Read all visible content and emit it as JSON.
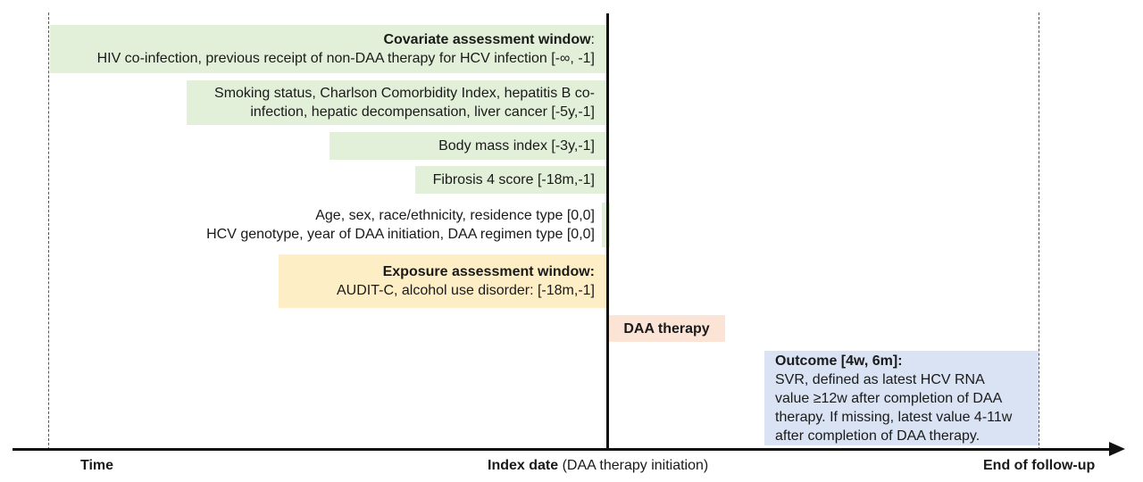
{
  "covariate": {
    "title": "Covariate assessment window",
    "colon": ":",
    "line1": "HIV co-infection, previous receipt of non-DAA therapy for HCV infection [-∞, -1]"
  },
  "smoking": {
    "line1": "Smoking status, Charlson Comorbidity Index, hepatitis B co-",
    "line2": "infection, hepatic decompensation, liver cancer [-5y,-1]"
  },
  "bmi": {
    "line1": "Body mass index [-3y,-1]"
  },
  "fibrosis": {
    "line1": "Fibrosis 4 score [-18m,-1]"
  },
  "demographics": {
    "line1": "Age, sex, race/ethnicity, residence type [0,0]",
    "line2": "HCV genotype, year of DAA initiation, DAA regimen type [0,0]"
  },
  "exposure": {
    "title": "Exposure assessment window:",
    "line1": "AUDIT-C, alcohol use disorder: [-18m,-1]"
  },
  "daa": {
    "label": "DAA therapy"
  },
  "outcome": {
    "title": "Outcome [4w, 6m]:",
    "line1": "SVR, defined as latest HCV RNA",
    "line2": "value ≥12w after completion of DAA",
    "line3": "therapy. If missing, latest value 4-11w",
    "line4": "after completion of DAA therapy."
  },
  "axis": {
    "time": "Time",
    "index_bold": "Index date",
    "index_rest": " (DAA therapy initiation)",
    "end": "End of follow-up"
  },
  "colors": {
    "covariate": "#e2f0d9",
    "exposure": "#fdeec5",
    "daa": "#fbe3d6",
    "outcome": "#dae3f3"
  }
}
